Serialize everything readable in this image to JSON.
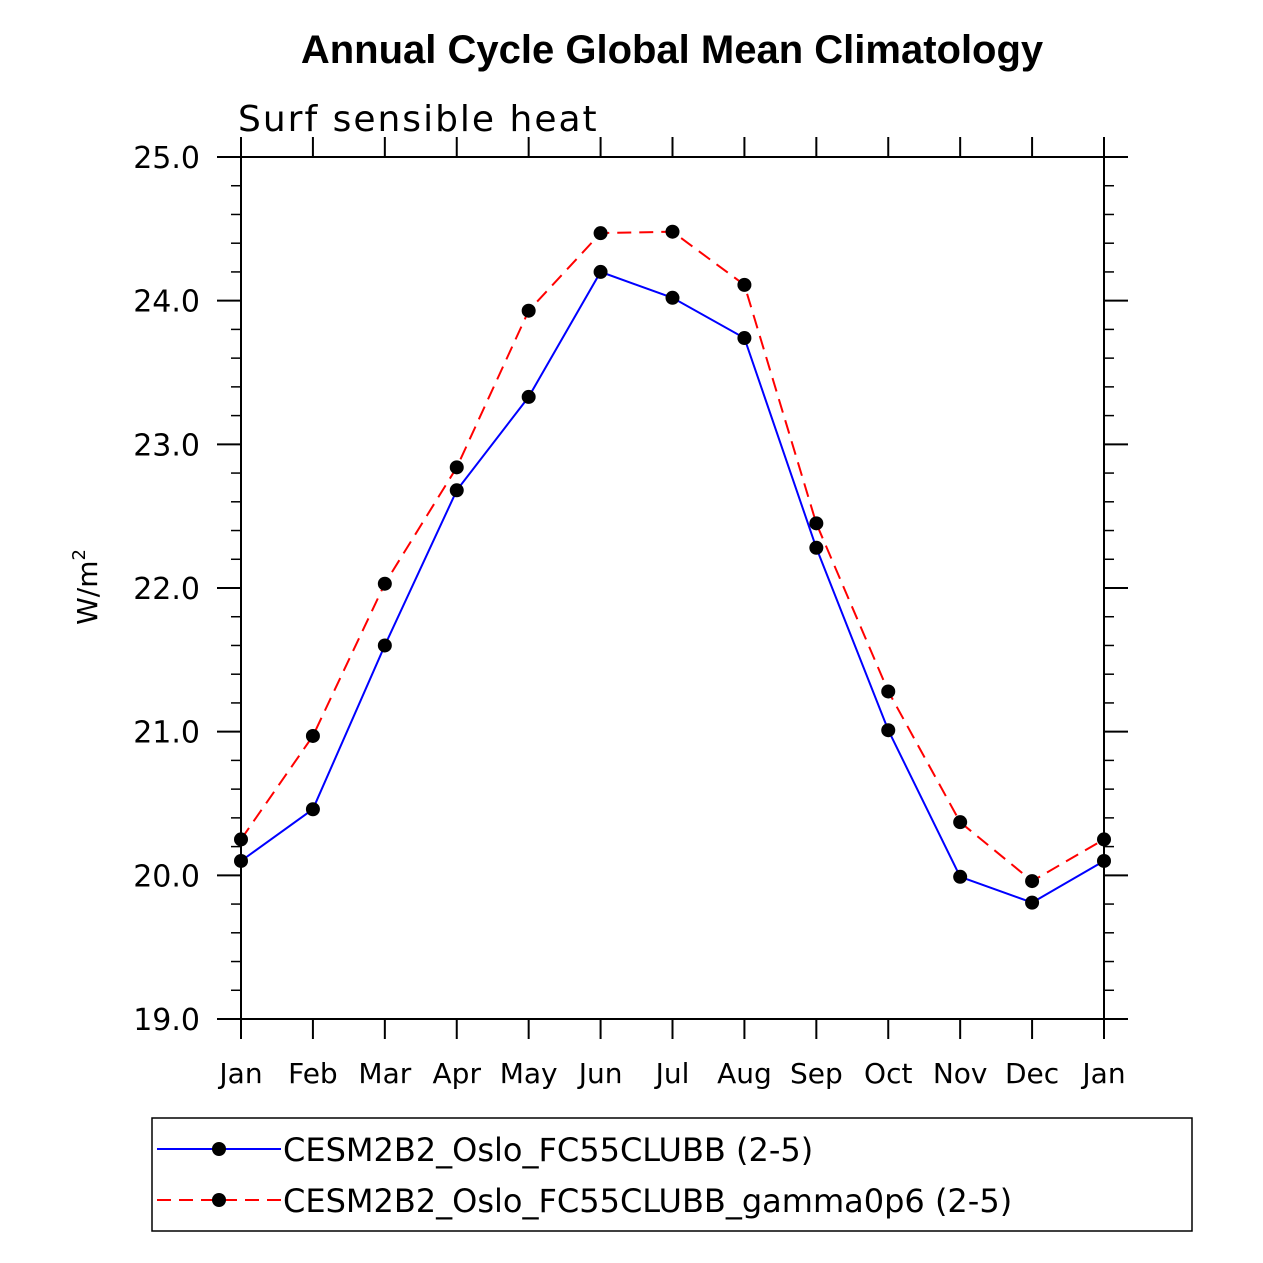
{
  "chart_data": {
    "type": "line",
    "title": "Annual Cycle Global Mean Climatology",
    "subtitle": "Surf sensible heat",
    "ylabel": "W/m",
    "ylabel_sup": "2",
    "ylim": [
      19.0,
      25.0
    ],
    "yticks": [
      "19.0",
      "20.0",
      "21.0",
      "22.0",
      "23.0",
      "24.0",
      "25.0"
    ],
    "categories": [
      "Jan",
      "Feb",
      "Mar",
      "Apr",
      "May",
      "Jun",
      "Jul",
      "Aug",
      "Sep",
      "Oct",
      "Nov",
      "Dec",
      "Jan"
    ],
    "series": [
      {
        "name": "CESM2B2_Oslo_FC55CLUBB (2-5)",
        "color": "#0000ff",
        "dash": "solid",
        "values": [
          20.1,
          20.46,
          21.6,
          22.68,
          23.33,
          24.2,
          24.02,
          23.74,
          22.28,
          21.01,
          19.99,
          19.81,
          20.1
        ]
      },
      {
        "name": "CESM2B2_Oslo_FC55CLUBB_gamma0p6 (2-5)",
        "color": "#ff0000",
        "dash": "dashed",
        "values": [
          20.25,
          20.97,
          22.03,
          22.84,
          23.93,
          24.47,
          24.48,
          24.11,
          22.45,
          21.28,
          20.37,
          19.96,
          20.25
        ]
      }
    ],
    "marker_color": "#000000"
  }
}
